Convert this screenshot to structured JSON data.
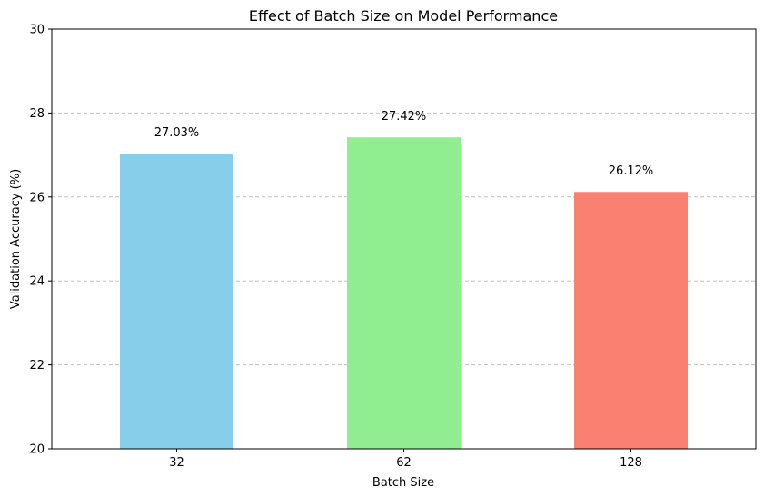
{
  "chart_data": {
    "type": "bar",
    "title": "Effect of Batch Size on Model Performance",
    "xlabel": "Batch Size",
    "ylabel": "Validation Accuracy (%)",
    "categories": [
      "32",
      "62",
      "128"
    ],
    "values": [
      27.03,
      27.42,
      26.12
    ],
    "data_labels": [
      "27.03%",
      "27.42%",
      "26.12%"
    ],
    "colors": [
      "#87ceeb",
      "#90ee90",
      "#fa8072"
    ],
    "ylim": [
      20,
      30
    ],
    "yticks": [
      20,
      22,
      24,
      26,
      28,
      30
    ],
    "ytick_labels": [
      "20",
      "22",
      "24",
      "26",
      "28",
      "30"
    ],
    "grid": "y-dashed",
    "legend": "none"
  }
}
